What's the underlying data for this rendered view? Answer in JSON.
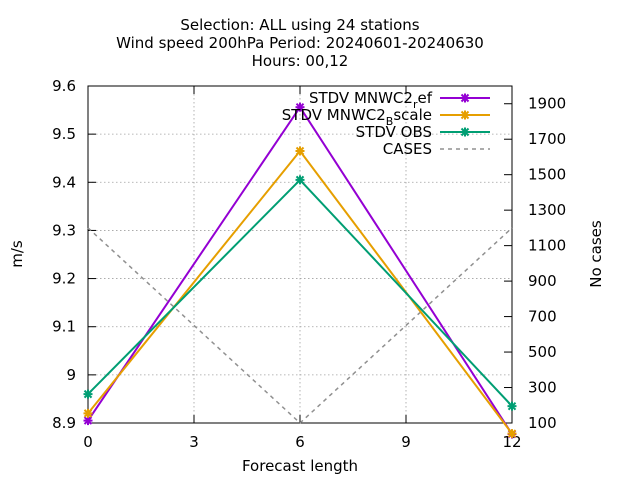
{
  "chart_data": {
    "type": "line",
    "title": {
      "line1": "Selection: ALL using    24 stations",
      "line2": "Wind speed 200hPa   Period: 20240601-20240630",
      "line3": "Hours: 00,12"
    },
    "xlabel": "Forecast length",
    "ylabel": "m/s",
    "y2label": "No cases",
    "x": [
      0,
      6,
      12
    ],
    "xlim": [
      0,
      12
    ],
    "xticks": [
      "0",
      "3",
      "6",
      "9",
      "12"
    ],
    "ylim": [
      8.9,
      9.6
    ],
    "yticks": [
      "8.9",
      "9",
      "9.1",
      "9.2",
      "9.3",
      "9.4",
      "9.5",
      "9.6"
    ],
    "y2lim": [
      100,
      2000
    ],
    "y2ticks": [
      "100",
      "300",
      "500",
      "700",
      "900",
      "1100",
      "1300",
      "1500",
      "1700",
      "1900"
    ],
    "grid": true,
    "legend_position": "top-right",
    "series": [
      {
        "name": "STDV MNWC2_ref",
        "legend_main": "STDV MNWC2",
        "legend_sub": "r",
        "legend_tail": "ef",
        "values": [
          8.905,
          9.556,
          8.877
        ],
        "color": "#9400d3",
        "axis": "y1",
        "marker": "x",
        "dash": false
      },
      {
        "name": "STDV MNWC2_Bscale",
        "legend_main": "STDV MNWC2",
        "legend_sub": "B",
        "legend_tail": "scale",
        "values": [
          8.92,
          9.465,
          8.878
        ],
        "color": "#e69f00",
        "axis": "y1",
        "marker": "x",
        "dash": false
      },
      {
        "name": "STDV OBS",
        "legend_main": "STDV OBS",
        "legend_sub": "",
        "legend_tail": "",
        "values": [
          8.96,
          9.405,
          8.935
        ],
        "color": "#009e73",
        "axis": "y1",
        "marker": "x",
        "dash": false
      },
      {
        "name": "CASES",
        "legend_main": "CASES",
        "legend_sub": "",
        "legend_tail": "",
        "values": [
          1200,
          100,
          1200
        ],
        "color": "#909090",
        "axis": "y2",
        "marker": "none",
        "dash": true
      }
    ]
  }
}
